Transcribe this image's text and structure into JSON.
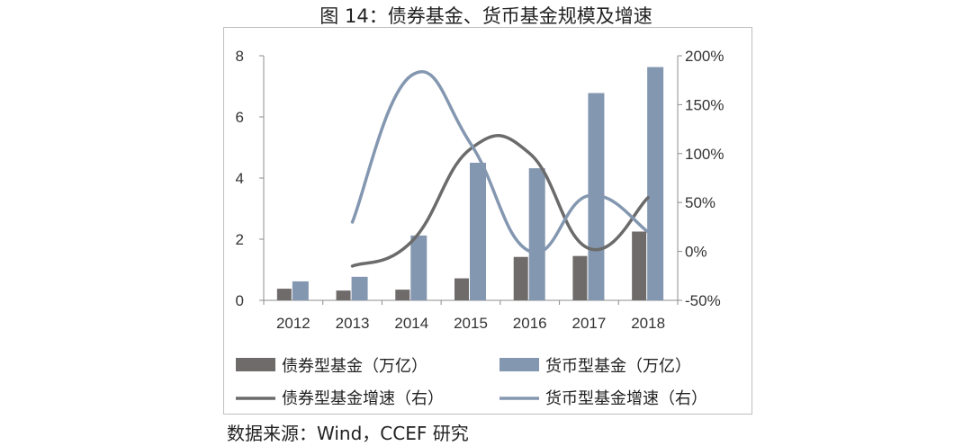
{
  "title": "图 14：债券基金、货币基金规模及增速",
  "source": "数据来源：Wind，CCEF 研究",
  "colors": {
    "bond_bar": "#6f6b6b",
    "money_bar": "#8497b0",
    "bond_line": "#6b6b6b",
    "money_line": "#8497b0",
    "axis": "#8c8c8c"
  },
  "chart_data": {
    "type": "bar+line",
    "categories": [
      "2012",
      "2013",
      "2014",
      "2015",
      "2016",
      "2017",
      "2018"
    ],
    "left_axis": {
      "min": 0,
      "max": 8,
      "ticks": [
        "0",
        "2",
        "4",
        "6",
        "8"
      ]
    },
    "right_axis": {
      "min": -50,
      "max": 200,
      "ticks": [
        "-50%",
        "0%",
        "50%",
        "100%",
        "150%",
        "200%"
      ]
    },
    "bars": [
      {
        "name": "债券型基金（万亿）",
        "values": [
          0.38,
          0.32,
          0.35,
          0.72,
          1.42,
          1.45,
          2.25
        ]
      },
      {
        "name": "货币型基金（万亿）",
        "values": [
          0.62,
          0.77,
          2.12,
          4.5,
          4.32,
          6.78,
          7.63
        ]
      }
    ],
    "lines": [
      {
        "name": "债券型基金增速（右）",
        "values": [
          null,
          -15,
          10,
          105,
          100,
          3,
          55
        ]
      },
      {
        "name": "货币型基金增速（右）",
        "values": [
          null,
          30,
          180,
          110,
          0,
          57,
          20
        ]
      }
    ],
    "legend": [
      "债券型基金（万亿）",
      "货币型基金（万亿）",
      "债券型基金增速（右）",
      "货币型基金增速（右）"
    ]
  }
}
